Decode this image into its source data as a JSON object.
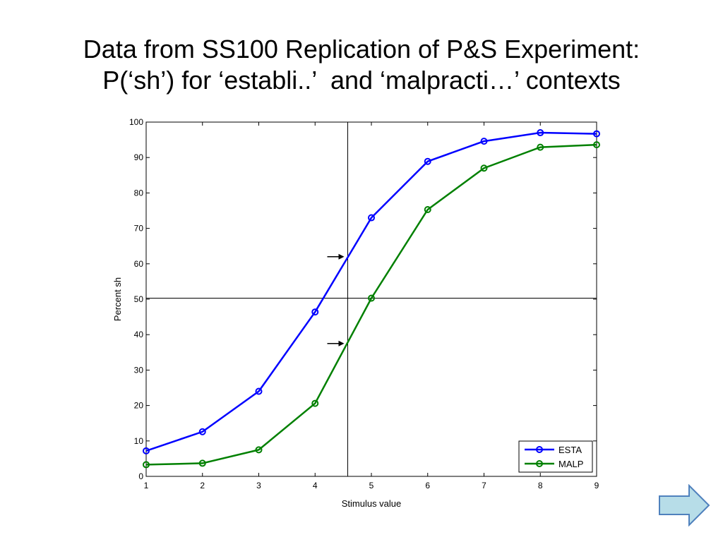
{
  "slide": {
    "title_line1": "Data from SS100 Replication of P&S Experiment:",
    "title_line2": "P(‘sh’) for ‘establi..’  and ‘malpracti…’ contexts"
  },
  "nav": {
    "next_icon": "right-arrow-icon",
    "next_color": "#b7dde8",
    "next_border": "#4f81bd"
  },
  "chart_data": {
    "type": "line",
    "xlabel": "Stimulus value",
    "ylabel": "Percent sh",
    "xlim": [
      1,
      9
    ],
    "ylim": [
      0,
      100
    ],
    "x_ticks": [
      1,
      2,
      3,
      4,
      5,
      6,
      7,
      8,
      9
    ],
    "y_ticks": [
      0,
      10,
      20,
      30,
      40,
      50,
      60,
      70,
      80,
      90,
      100
    ],
    "grid": false,
    "legend_position": "bottom-right",
    "x": [
      1,
      2,
      3,
      4,
      5,
      6,
      7,
      8,
      9
    ],
    "series": [
      {
        "name": "ESTA",
        "color": "#0000ff",
        "marker": "circle",
        "values": [
          7.2,
          12.6,
          24,
          46.4,
          73,
          88.9,
          94.6,
          97,
          96.7
        ]
      },
      {
        "name": "MALP",
        "color": "#008000",
        "marker": "circle",
        "values": [
          3.3,
          3.7,
          7.5,
          20.6,
          50.3,
          75.3,
          87,
          92.9,
          93.6
        ]
      }
    ],
    "reference_lines": {
      "vertical_x": 4.58,
      "horizontal_y": 50.3,
      "color": "#000000"
    },
    "annotations": [
      {
        "type": "arrow",
        "pointing": "right",
        "x": 4.58,
        "y": 62
      },
      {
        "type": "arrow",
        "pointing": "right",
        "x": 4.58,
        "y": 37.5
      }
    ]
  }
}
